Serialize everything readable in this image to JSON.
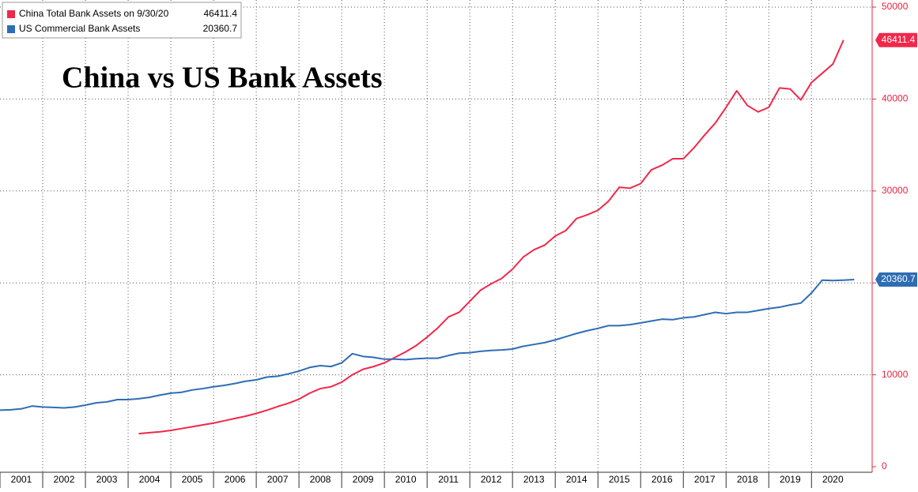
{
  "chart_data": {
    "type": "line",
    "title": "China vs US Bank Assets",
    "x": [
      2001,
      2001.25,
      2001.5,
      2001.75,
      2002,
      2002.25,
      2002.5,
      2002.75,
      2003,
      2003.25,
      2003.5,
      2003.75,
      2004,
      2004.25,
      2004.5,
      2004.75,
      2005,
      2005.25,
      2005.5,
      2005.75,
      2006,
      2006.25,
      2006.5,
      2006.75,
      2007,
      2007.25,
      2007.5,
      2007.75,
      2008,
      2008.25,
      2008.5,
      2008.75,
      2009,
      2009.25,
      2009.5,
      2009.75,
      2010,
      2010.25,
      2010.5,
      2010.75,
      2011,
      2011.25,
      2011.5,
      2011.75,
      2012,
      2012.25,
      2012.5,
      2012.75,
      2013,
      2013.25,
      2013.5,
      2013.75,
      2014,
      2014.25,
      2014.5,
      2014.75,
      2015,
      2015.25,
      2015.5,
      2015.75,
      2016,
      2016.25,
      2016.5,
      2016.75,
      2017,
      2017.25,
      2017.5,
      2017.75,
      2018,
      2018.25,
      2018.5,
      2018.75,
      2019,
      2019.25,
      2019.5,
      2019.75,
      2020,
      2020.25,
      2020.5,
      2020.75,
      2021
    ],
    "series": [
      {
        "name": "China Total Bank Assets on 9/30/20",
        "color": "#f0284a",
        "values": [
          null,
          null,
          null,
          null,
          null,
          null,
          null,
          null,
          null,
          null,
          null,
          null,
          null,
          3600,
          3700,
          3800,
          3950,
          4150,
          4350,
          4550,
          4750,
          5000,
          5250,
          5500,
          5800,
          6150,
          6550,
          6900,
          7350,
          8000,
          8500,
          8700,
          9200,
          10000,
          10600,
          10900,
          11300,
          11900,
          12500,
          13200,
          14100,
          15100,
          16300,
          16800,
          18000,
          19200,
          19900,
          20500,
          21500,
          22800,
          23600,
          24100,
          25100,
          25700,
          27000,
          27400,
          27900,
          28900,
          30400,
          30300,
          30800,
          32300,
          32800,
          33500,
          33500,
          34700,
          36100,
          37400,
          39100,
          40900,
          39300,
          38600,
          39100,
          41200,
          41100,
          39900,
          41800,
          42800,
          43800,
          46411.4,
          null
        ]
      },
      {
        "name": "US Commercial Bank Assets",
        "color": "#2e6db4",
        "values": [
          6150,
          6200,
          6300,
          6600,
          6500,
          6450,
          6400,
          6500,
          6700,
          6950,
          7050,
          7300,
          7300,
          7400,
          7550,
          7800,
          8000,
          8100,
          8350,
          8500,
          8700,
          8850,
          9050,
          9300,
          9450,
          9750,
          9850,
          10100,
          10400,
          10800,
          11000,
          10900,
          11300,
          12300,
          12000,
          11900,
          11700,
          11700,
          11650,
          11750,
          11800,
          11800,
          12100,
          12350,
          12400,
          12550,
          12650,
          12700,
          12800,
          13100,
          13300,
          13500,
          13800,
          14150,
          14500,
          14800,
          15050,
          15350,
          15350,
          15450,
          15650,
          15850,
          16050,
          16000,
          16200,
          16300,
          16550,
          16800,
          16650,
          16800,
          16800,
          17000,
          17200,
          17350,
          17600,
          17800,
          18900,
          20300,
          20250,
          20300,
          20360.7
        ]
      }
    ],
    "xlim": [
      2001,
      2021.42
    ],
    "xticks": [
      2001,
      2002,
      2003,
      2004,
      2005,
      2006,
      2007,
      2008,
      2009,
      2010,
      2011,
      2012,
      2013,
      2014,
      2015,
      2016,
      2017,
      2018,
      2019,
      2020
    ],
    "ylim": [
      0,
      50000
    ],
    "yticks": [
      0,
      10000,
      20000,
      30000,
      40000,
      50000
    ],
    "axis_color": "#e8233f",
    "grid": true
  }
}
